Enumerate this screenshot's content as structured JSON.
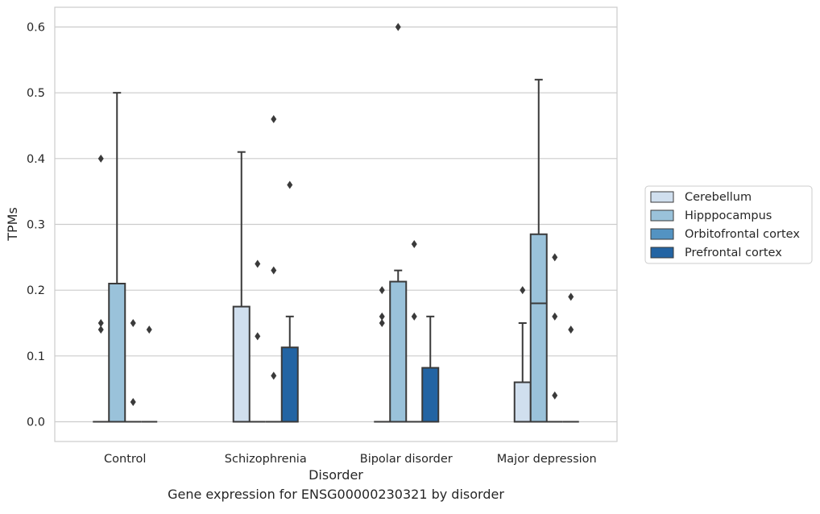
{
  "caption": "Gene expression for ENSG00000230321 by disorder",
  "chart_data": {
    "type": "box",
    "xlabel": "Disorder",
    "ylabel": "TPMs",
    "ylim": [
      -0.03,
      0.63
    ],
    "yticks": [
      0.0,
      0.1,
      0.2,
      0.3,
      0.4,
      0.5,
      0.6
    ],
    "ytick_labels": [
      "0.0",
      "0.1",
      "0.2",
      "0.3",
      "0.4",
      "0.5",
      "0.6"
    ],
    "grid": "horizontal",
    "legend_position": "right",
    "categories": [
      "Control",
      "Schizophrenia",
      "Bipolar disorder",
      "Major depression"
    ],
    "series": [
      {
        "name": "Cerebellum",
        "color": "#d0dfee",
        "boxes": [
          {
            "q1": 0,
            "median": 0,
            "q3": 0,
            "whisker_low": 0,
            "whisker_high": 0,
            "outliers": [
              0.4,
              0.15,
              0.14
            ]
          },
          {
            "q1": 0,
            "median": 0,
            "q3": 0.175,
            "whisker_low": 0,
            "whisker_high": 0.41,
            "outliers": []
          },
          {
            "q1": 0,
            "median": 0,
            "q3": 0,
            "whisker_low": 0,
            "whisker_high": 0,
            "outliers": [
              0.2,
              0.16,
              0.15
            ]
          },
          {
            "q1": 0,
            "median": 0,
            "q3": 0.06,
            "whisker_low": 0,
            "whisker_high": 0.15,
            "outliers": [
              0.2
            ]
          }
        ]
      },
      {
        "name": "Hipppocampus",
        "color": "#9ac2da",
        "boxes": [
          {
            "q1": 0,
            "median": 0,
            "q3": 0.21,
            "whisker_low": 0,
            "whisker_high": 0.5,
            "outliers": []
          },
          {
            "q1": 0,
            "median": 0,
            "q3": 0,
            "whisker_low": 0,
            "whisker_high": 0,
            "outliers": [
              0.24,
              0.13
            ]
          },
          {
            "q1": 0,
            "median": 0,
            "q3": 0.213,
            "whisker_low": 0,
            "whisker_high": 0.23,
            "outliers": [
              0.6
            ]
          },
          {
            "q1": 0,
            "median": 0.18,
            "q3": 0.285,
            "whisker_low": 0,
            "whisker_high": 0.52,
            "outliers": []
          }
        ]
      },
      {
        "name": "Orbitofrontal cortex",
        "color": "#5393c2",
        "boxes": [
          {
            "q1": 0,
            "median": 0,
            "q3": 0,
            "whisker_low": 0,
            "whisker_high": 0,
            "outliers": [
              0.15,
              0.03
            ]
          },
          {
            "q1": 0,
            "median": 0,
            "q3": 0,
            "whisker_low": 0,
            "whisker_high": 0,
            "outliers": [
              0.46,
              0.23,
              0.07
            ]
          },
          {
            "q1": 0,
            "median": 0,
            "q3": 0,
            "whisker_low": 0,
            "whisker_high": 0,
            "outliers": [
              0.27,
              0.16
            ]
          },
          {
            "q1": 0,
            "median": 0,
            "q3": 0,
            "whisker_low": 0,
            "whisker_high": 0,
            "outliers": [
              0.25,
              0.16,
              0.04
            ]
          }
        ]
      },
      {
        "name": "Prefrontal cortex",
        "color": "#2364a3",
        "boxes": [
          {
            "q1": 0,
            "median": 0,
            "q3": 0,
            "whisker_low": 0,
            "whisker_high": 0,
            "outliers": [
              0.14
            ]
          },
          {
            "q1": 0,
            "median": 0,
            "q3": 0.113,
            "whisker_low": 0,
            "whisker_high": 0.16,
            "outliers": [
              0.36
            ]
          },
          {
            "q1": 0,
            "median": 0,
            "q3": 0.082,
            "whisker_low": 0,
            "whisker_high": 0.16,
            "outliers": []
          },
          {
            "q1": 0,
            "median": 0,
            "q3": 0,
            "whisker_low": 0,
            "whisker_high": 0,
            "outliers": [
              0.19,
              0.14
            ]
          }
        ]
      }
    ]
  }
}
